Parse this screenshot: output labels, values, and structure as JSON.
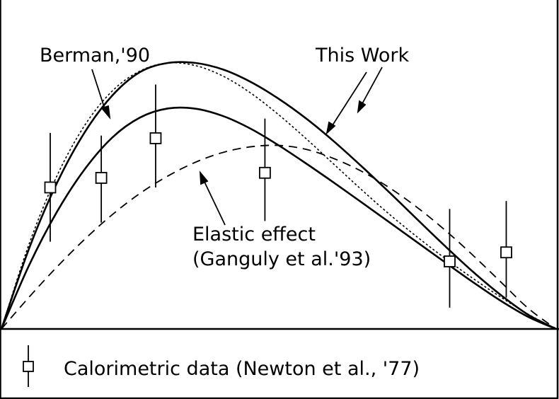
{
  "chart_data": {
    "type": "line",
    "x_range": [
      0,
      1
    ],
    "ylim": [
      0,
      1
    ],
    "xlabel": "",
    "ylabel": "",
    "title": "",
    "grid": false,
    "series": [
      {
        "name": "This Work",
        "style": "solid",
        "color": "#000000",
        "x": [
          0,
          0.05,
          0.1,
          0.15,
          0.2,
          0.25,
          0.3,
          0.35,
          0.4,
          0.45,
          0.5,
          0.55,
          0.6,
          0.65,
          0.7,
          0.75,
          0.8,
          0.85,
          0.9,
          0.95,
          1
        ],
        "y": [
          0,
          0.303,
          0.548,
          0.739,
          0.878,
          0.966,
          1.0,
          1.0,
          0.975,
          0.928,
          0.865,
          0.79,
          0.704,
          0.61,
          0.512,
          0.411,
          0.311,
          0.215,
          0.128,
          0.053,
          0
        ]
      },
      {
        "name": "This Work",
        "style": "solid",
        "color": "#000000",
        "x": [
          0,
          0.05,
          0.1,
          0.15,
          0.2,
          0.25,
          0.3,
          0.35,
          0.4,
          0.45,
          0.5,
          0.55,
          0.6,
          0.65,
          0.7,
          0.75,
          0.8,
          0.85,
          0.9,
          0.95,
          1
        ],
        "y": [
          0,
          0.24,
          0.44,
          0.6,
          0.72,
          0.795,
          0.829,
          0.828,
          0.8,
          0.752,
          0.69,
          0.621,
          0.549,
          0.475,
          0.4,
          0.325,
          0.25,
          0.176,
          0.106,
          0.045,
          0
        ]
      },
      {
        "name": "Berman,'90",
        "style": "dotted",
        "color": "#000000",
        "x": [
          0,
          0.05,
          0.1,
          0.15,
          0.2,
          0.25,
          0.3,
          0.35,
          0.4,
          0.45,
          0.5,
          0.55,
          0.6,
          0.65,
          0.7,
          0.75,
          0.8,
          0.85,
          0.9,
          0.95,
          1
        ],
        "y": [
          0,
          0.32,
          0.575,
          0.765,
          0.895,
          0.97,
          1.0,
          0.99,
          0.95,
          0.886,
          0.805,
          0.714,
          0.618,
          0.522,
          0.43,
          0.345,
          0.265,
          0.19,
          0.12,
          0.055,
          0
        ]
      },
      {
        "name": "Elastic effect (Ganguly et al.'93)",
        "style": "dashed",
        "color": "#000000",
        "x": [
          0,
          0.05,
          0.1,
          0.15,
          0.2,
          0.25,
          0.3,
          0.35,
          0.4,
          0.45,
          0.5,
          0.55,
          0.6,
          0.65,
          0.7,
          0.75,
          0.8,
          0.85,
          0.9,
          0.95,
          1
        ],
        "y": [
          0,
          0.12,
          0.233,
          0.337,
          0.43,
          0.51,
          0.575,
          0.627,
          0.664,
          0.685,
          0.69,
          0.675,
          0.64,
          0.592,
          0.53,
          0.456,
          0.371,
          0.277,
          0.177,
          0.077,
          0
        ]
      }
    ],
    "points": {
      "name": "Calorimetric data (Newton et al., '77)",
      "marker": "square",
      "x": [
        0.088,
        0.18,
        0.278,
        0.475,
        0.808,
        0.91
      ],
      "y": [
        0.532,
        0.568,
        0.717,
        0.587,
        0.254,
        0.288
      ],
      "y_low": [
        0.328,
        0.4,
        0.532,
        0.406,
        0.08,
        0.118
      ],
      "y_high": [
        0.737,
        0.727,
        0.919,
        0.791,
        0.451,
        0.481
      ]
    },
    "annotations": {
      "berman": "Berman,'90",
      "this_work": "This Work",
      "elastic_line1": "Elastic effect",
      "elastic_line2": "(Ganguly et al.'93)"
    },
    "legend": {
      "placement": "bottom",
      "label": "Calorimetric data (Newton et al., '77)"
    }
  }
}
